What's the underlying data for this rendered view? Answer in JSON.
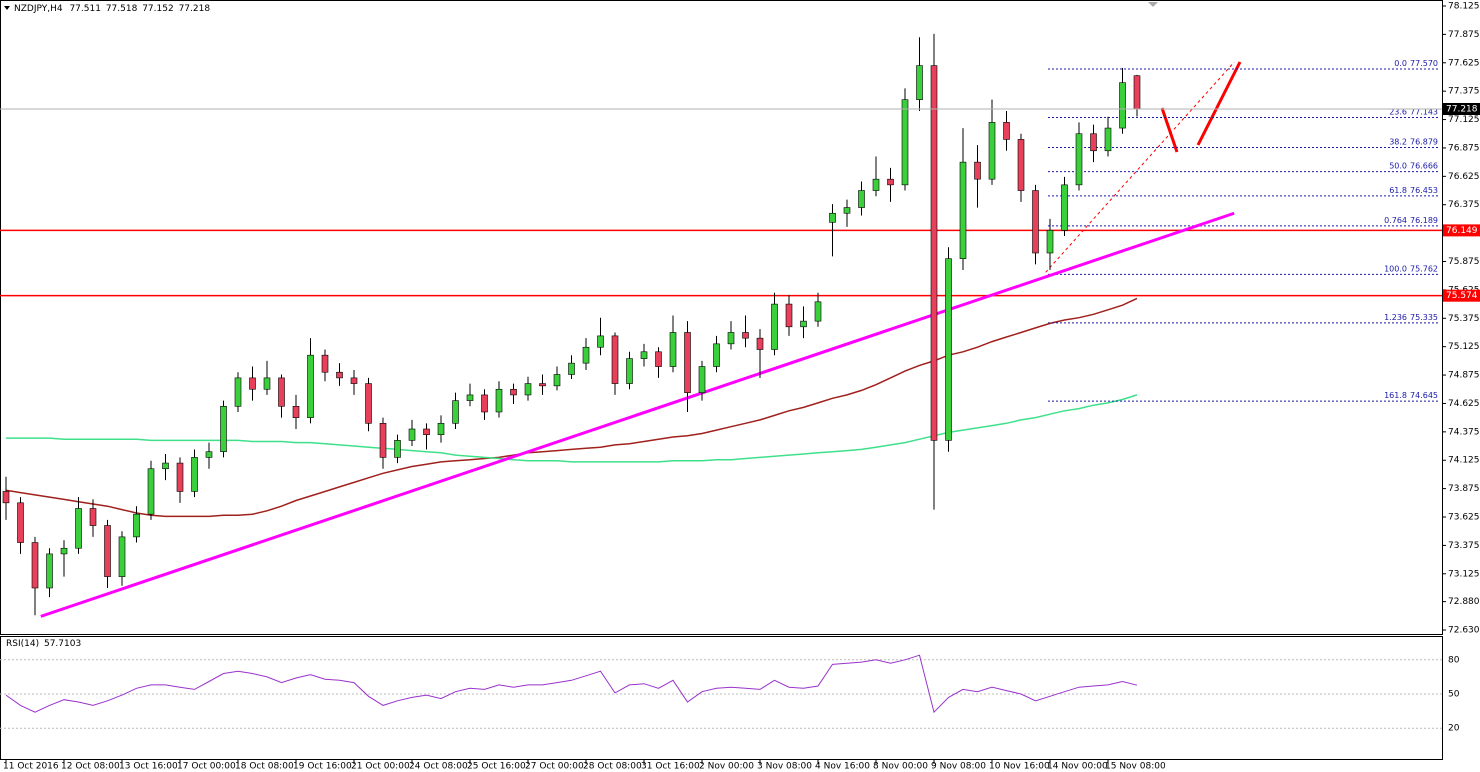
{
  "chart_data": {
    "type": "candlestick",
    "symbol": "NZDJPY,H4",
    "colors": {
      "up": "#3ccf3c",
      "down": "#e8405a",
      "wick": "#000000"
    },
    "candles": [
      [
        73.85,
        73.98,
        73.6,
        73.75
      ],
      [
        73.75,
        73.8,
        73.3,
        73.4
      ],
      [
        73.4,
        73.45,
        72.76,
        73.0
      ],
      [
        73.0,
        73.35,
        72.92,
        73.3
      ],
      [
        73.3,
        73.42,
        73.1,
        73.35
      ],
      [
        73.35,
        73.8,
        73.3,
        73.7
      ],
      [
        73.7,
        73.78,
        73.45,
        73.55
      ],
      [
        73.55,
        73.6,
        73.0,
        73.1
      ],
      [
        73.1,
        73.5,
        73.02,
        73.45
      ],
      [
        73.45,
        73.72,
        73.4,
        73.65
      ],
      [
        73.65,
        74.12,
        73.6,
        74.05
      ],
      [
        74.05,
        74.18,
        73.95,
        74.1
      ],
      [
        74.1,
        74.15,
        73.75,
        73.85
      ],
      [
        73.85,
        74.22,
        73.8,
        74.15
      ],
      [
        74.15,
        74.28,
        74.05,
        74.2
      ],
      [
        74.2,
        74.65,
        74.15,
        74.6
      ],
      [
        74.6,
        74.9,
        74.55,
        74.85
      ],
      [
        74.85,
        74.95,
        74.65,
        74.75
      ],
      [
        74.75,
        75.0,
        74.7,
        74.85
      ],
      [
        74.85,
        74.88,
        74.5,
        74.6
      ],
      [
        74.6,
        74.7,
        74.4,
        74.5
      ],
      [
        74.5,
        75.2,
        74.45,
        75.05
      ],
      [
        75.05,
        75.1,
        74.82,
        74.9
      ],
      [
        74.9,
        74.98,
        74.78,
        74.85
      ],
      [
        74.85,
        74.92,
        74.7,
        74.8
      ],
      [
        74.8,
        74.85,
        74.38,
        74.45
      ],
      [
        74.45,
        74.5,
        74.05,
        74.15
      ],
      [
        74.15,
        74.35,
        74.1,
        74.3
      ],
      [
        74.3,
        74.48,
        74.25,
        74.4
      ],
      [
        74.4,
        74.45,
        74.22,
        74.35
      ],
      [
        74.35,
        74.52,
        74.28,
        74.45
      ],
      [
        74.45,
        74.72,
        74.4,
        74.65
      ],
      [
        74.65,
        74.8,
        74.6,
        74.7
      ],
      [
        74.7,
        74.75,
        74.48,
        74.55
      ],
      [
        74.55,
        74.82,
        74.5,
        74.75
      ],
      [
        74.75,
        74.8,
        74.62,
        74.7
      ],
      [
        74.7,
        74.86,
        74.65,
        74.8
      ],
      [
        74.8,
        74.88,
        74.7,
        74.78
      ],
      [
        74.78,
        74.95,
        74.74,
        74.88
      ],
      [
        74.88,
        75.05,
        74.84,
        74.98
      ],
      [
        74.98,
        75.2,
        74.92,
        75.12
      ],
      [
        75.12,
        75.38,
        75.05,
        75.22
      ],
      [
        75.22,
        75.25,
        74.7,
        74.8
      ],
      [
        74.8,
        75.08,
        74.75,
        75.02
      ],
      [
        75.02,
        75.15,
        74.95,
        75.08
      ],
      [
        75.08,
        75.12,
        74.85,
        74.95
      ],
      [
        74.95,
        75.4,
        74.9,
        75.25
      ],
      [
        75.25,
        75.35,
        74.55,
        74.72
      ],
      [
        74.72,
        75.0,
        74.65,
        74.95
      ],
      [
        74.95,
        75.22,
        74.9,
        75.15
      ],
      [
        75.15,
        75.35,
        75.1,
        75.25
      ],
      [
        75.25,
        75.4,
        75.12,
        75.2
      ],
      [
        75.2,
        75.28,
        74.85,
        75.1
      ],
      [
        75.1,
        75.6,
        75.05,
        75.5
      ],
      [
        75.5,
        75.58,
        75.22,
        75.3
      ],
      [
        75.3,
        75.48,
        75.2,
        75.35
      ],
      [
        75.35,
        75.6,
        75.3,
        75.52
      ],
      [
        76.22,
        76.38,
        75.92,
        76.3
      ],
      [
        76.3,
        76.42,
        76.18,
        76.35
      ],
      [
        76.35,
        76.58,
        76.28,
        76.5
      ],
      [
        76.5,
        76.8,
        76.45,
        76.6
      ],
      [
        76.6,
        76.7,
        76.4,
        76.55
      ],
      [
        76.55,
        77.4,
        76.5,
        77.3
      ],
      [
        77.3,
        77.85,
        77.2,
        77.6
      ],
      [
        77.6,
        77.88,
        73.69,
        74.3
      ],
      [
        74.3,
        76.0,
        74.2,
        75.9
      ],
      [
        75.9,
        77.05,
        75.8,
        76.75
      ],
      [
        76.75,
        76.9,
        76.35,
        76.6
      ],
      [
        76.6,
        77.3,
        76.55,
        77.1
      ],
      [
        77.1,
        77.2,
        76.85,
        76.95
      ],
      [
        76.95,
        77.0,
        76.4,
        76.5
      ],
      [
        76.5,
        76.55,
        75.85,
        75.95
      ],
      [
        75.95,
        76.25,
        75.8,
        76.15
      ],
      [
        76.15,
        76.62,
        76.1,
        76.55
      ],
      [
        76.55,
        77.1,
        76.5,
        77.0
      ],
      [
        77.0,
        77.08,
        76.75,
        76.85
      ],
      [
        76.85,
        77.15,
        76.8,
        77.05
      ],
      [
        77.05,
        77.58,
        77.0,
        77.45
      ],
      [
        77.511,
        77.518,
        77.152,
        77.218
      ]
    ],
    "moving_averages": [
      {
        "color": "#a0201c",
        "values": [
          73.86,
          73.84,
          73.82,
          73.8,
          73.78,
          73.76,
          73.74,
          73.72,
          73.69,
          73.66,
          73.64,
          73.63,
          73.63,
          73.63,
          73.63,
          73.64,
          73.64,
          73.65,
          73.68,
          73.72,
          73.77,
          73.81,
          73.85,
          73.89,
          73.93,
          73.97,
          74.01,
          74.04,
          74.07,
          74.09,
          74.11,
          74.12,
          74.13,
          74.14,
          74.15,
          74.17,
          74.19,
          74.2,
          74.21,
          74.22,
          74.23,
          74.24,
          74.26,
          74.27,
          74.29,
          74.31,
          74.33,
          74.34,
          74.36,
          74.39,
          74.42,
          74.45,
          74.48,
          74.52,
          74.56,
          74.59,
          74.63,
          74.67,
          74.7,
          74.74,
          74.79,
          74.85,
          74.91,
          74.96,
          75.0,
          75.05,
          75.08,
          75.12,
          75.17,
          75.21,
          75.25,
          75.29,
          75.33,
          75.36,
          75.38,
          75.41,
          75.45,
          75.49,
          75.55
        ]
      },
      {
        "color": "#3fe08a",
        "values": [
          74.32,
          74.32,
          74.32,
          74.32,
          74.31,
          74.31,
          74.31,
          74.31,
          74.31,
          74.31,
          74.3,
          74.3,
          74.3,
          74.3,
          74.3,
          74.3,
          74.3,
          74.29,
          74.29,
          74.29,
          74.28,
          74.28,
          74.27,
          74.26,
          74.25,
          74.24,
          74.23,
          74.22,
          74.21,
          74.2,
          74.19,
          74.17,
          74.16,
          74.15,
          74.14,
          74.13,
          74.12,
          74.12,
          74.12,
          74.11,
          74.11,
          74.11,
          74.11,
          74.11,
          74.11,
          74.11,
          74.12,
          74.12,
          74.12,
          74.13,
          74.13,
          74.14,
          74.15,
          74.16,
          74.17,
          74.18,
          74.19,
          74.2,
          74.21,
          74.22,
          74.24,
          74.26,
          74.28,
          74.31,
          74.34,
          74.37,
          74.39,
          74.41,
          74.43,
          74.45,
          74.48,
          74.5,
          74.53,
          74.56,
          74.58,
          74.61,
          74.63,
          74.66,
          74.7
        ]
      }
    ],
    "ylim": [
      72.63,
      78.125
    ],
    "yticks": [
      78.125,
      77.875,
      77.625,
      77.375,
      77.125,
      76.875,
      76.625,
      76.375,
      76.125,
      75.875,
      75.625,
      75.375,
      75.125,
      74.875,
      74.625,
      74.375,
      74.125,
      73.875,
      73.625,
      73.375,
      73.125,
      {
        "value": 72.88,
        "label": "72.880"
      },
      {
        "value": 72.63,
        "label": "72.630"
      }
    ],
    "xticks": [
      {
        "value": 0,
        "label": "11 Oct 2016"
      },
      {
        "value": 4,
        "label": "12 Oct 08:00"
      },
      {
        "value": 8,
        "label": "13 Oct 16:00"
      },
      {
        "value": 12,
        "label": "17 Oct 00:00"
      },
      {
        "value": 16,
        "label": "18 Oct 08:00"
      },
      {
        "value": 20,
        "label": "19 Oct 16:00"
      },
      {
        "value": 24,
        "label": "21 Oct 00:00"
      },
      {
        "value": 28,
        "label": "24 Oct 08:00"
      },
      {
        "value": 32,
        "label": "25 Oct 16:00"
      },
      {
        "value": 36,
        "label": "27 Oct 00:00"
      },
      {
        "value": 40,
        "label": "28 Oct 08:00"
      },
      {
        "value": 44,
        "label": "31 Oct 16:00"
      },
      {
        "value": 48,
        "label": "2 Nov 00:00"
      },
      {
        "value": 52,
        "label": "3 Nov 08:00"
      },
      {
        "value": 56,
        "label": "4 Nov 16:00"
      },
      {
        "value": 60,
        "label": "8 Nov 00:00"
      },
      {
        "value": 64,
        "label": "9 Nov 08:00"
      },
      {
        "value": 68,
        "label": "10 Nov 16:00"
      },
      {
        "value": 72,
        "label": "14 Nov 00:00"
      },
      {
        "value": 76,
        "label": "15 Nov 08:00"
      }
    ],
    "levels": [
      {
        "price": 76.149,
        "color": "#ff0000"
      },
      {
        "price": 75.574,
        "color": "#ff0000"
      }
    ],
    "fib_levels": [
      {
        "ratio": "0.0",
        "price": {
          "value": 77.57,
          "label": "77.570"
        }
      },
      {
        "ratio": "23.6",
        "price": 77.143
      },
      {
        "ratio": "38.2",
        "price": 76.879
      },
      {
        "ratio": "50.0",
        "price": 76.666
      },
      {
        "ratio": "61.8",
        "price": 76.453
      },
      {
        "ratio": "0.764",
        "price": 76.189
      },
      {
        "ratio": "100.0",
        "price": 75.762
      },
      {
        "ratio": "1.236",
        "price": 75.335
      },
      {
        "ratio": "161.8",
        "price": 74.645
      }
    ],
    "fib_color": "#1a1aa8",
    "trendlines": [
      {
        "color": "#ff00ff",
        "dashed": false,
        "points": [
          [
            2.4,
            72.75
          ],
          [
            84.7,
            76.3
          ]
        ]
      },
      {
        "color": "#ff0000",
        "dashed": true,
        "points": [
          [
            71.7,
            75.78
          ],
          [
            84.7,
            77.63
          ]
        ]
      }
    ],
    "rsi": {
      "label": "RSI(14)",
      "color": "#9932cc",
      "ylim": [
        0,
        100
      ],
      "yticks": [
        20,
        50,
        80
      ],
      "values": [
        49,
        40,
        34,
        40,
        45,
        43,
        40,
        44,
        49,
        55,
        58,
        58,
        56,
        54,
        61,
        68,
        70,
        68,
        65,
        60,
        64,
        67,
        63,
        62,
        60,
        48,
        40,
        44,
        47,
        49,
        46,
        52,
        55,
        54,
        58,
        56,
        58,
        58,
        60,
        62,
        66,
        70,
        51,
        58,
        59,
        55,
        62,
        43,
        52,
        55,
        56,
        55,
        54,
        62,
        56,
        55,
        57,
        76,
        77,
        78,
        80,
        77,
        80,
        84,
        34,
        47,
        54,
        52,
        56,
        53,
        50,
        44,
        48,
        52,
        56,
        57,
        58,
        61,
        57.7103
      ]
    }
  }
}
